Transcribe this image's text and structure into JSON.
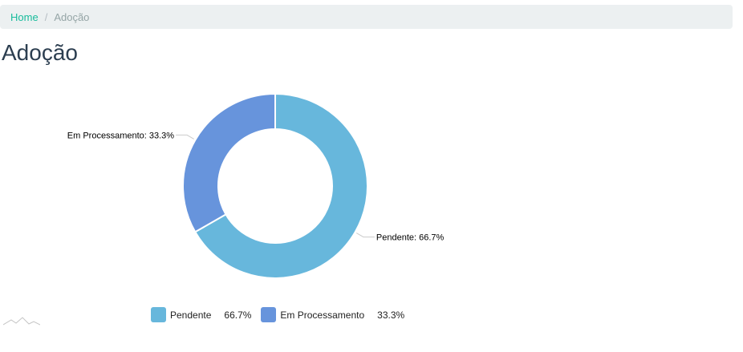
{
  "breadcrumb": {
    "home": "Home",
    "separator": "/",
    "current": "Adoção"
  },
  "page": {
    "title": "Adoção"
  },
  "colors": {
    "pendente": "#67b7dc",
    "em_processamento": "#6794dc"
  },
  "icons": {
    "chart_watermark": "mountain-line-icon"
  },
  "chart_data": {
    "type": "pie",
    "donut": true,
    "title": "",
    "slices": [
      {
        "label": "Pendente",
        "value": 66.7,
        "display": "Pendente: 66.7%",
        "color": "#67b7dc"
      },
      {
        "label": "Em Processamento",
        "value": 33.3,
        "display": "Em Processamento: 33.3%",
        "color": "#6794dc"
      }
    ],
    "legend": {
      "position": "bottom",
      "items": [
        {
          "label": "Pendente",
          "value": "66.7%"
        },
        {
          "label": "Em Processamento",
          "value": "33.3%"
        }
      ]
    }
  }
}
